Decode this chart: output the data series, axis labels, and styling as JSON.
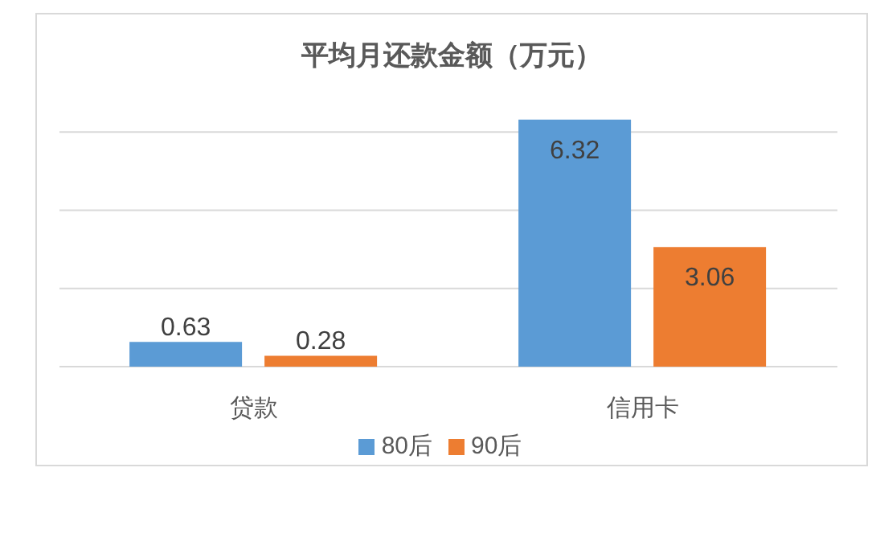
{
  "chart_data": {
    "type": "bar",
    "title": "平均月还款金额（万元）",
    "categories": [
      "贷款",
      "信用卡"
    ],
    "series": [
      {
        "name": "80后",
        "color": "#5b9bd5",
        "values": [
          0.63,
          6.32
        ]
      },
      {
        "name": "90后",
        "color": "#ed7d31",
        "values": [
          0.28,
          3.06
        ]
      }
    ],
    "yticks": [
      0,
      2,
      4,
      6
    ],
    "tick_labels": "x",
    "grid": "y",
    "legend": "bottom",
    "data_labels": true
  }
}
